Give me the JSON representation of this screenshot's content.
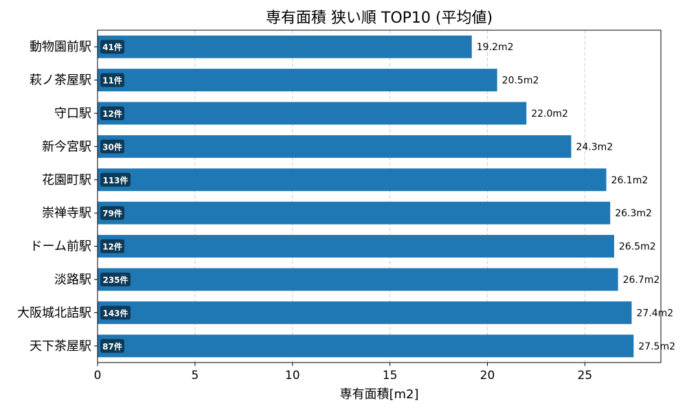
{
  "chart_data": {
    "type": "bar",
    "orientation": "horizontal",
    "title": "専有面積 狭い順 TOP10 (平均値)",
    "xlabel": "専有面積[m2]",
    "ylabel": "",
    "xlim": [
      0,
      28.9
    ],
    "xticks": [
      0,
      5,
      10,
      15,
      20,
      25
    ],
    "grid": "x-dashed",
    "categories": [
      "動物園前駅",
      "萩ノ茶屋駅",
      "守口駅",
      "新今宮駅",
      "花園町駅",
      "崇禅寺駅",
      "ドーム前駅",
      "淡路駅",
      "大阪城北詰駅",
      "天下茶屋駅"
    ],
    "values": [
      19.2,
      20.5,
      22.0,
      24.3,
      26.1,
      26.3,
      26.5,
      26.7,
      27.4,
      27.5
    ],
    "value_labels": [
      "19.2m2",
      "20.5m2",
      "22.0m2",
      "24.3m2",
      "26.1m2",
      "26.3m2",
      "26.5m2",
      "26.7m2",
      "27.4m2",
      "27.5m2"
    ],
    "count_labels": [
      "41件",
      "11件",
      "12件",
      "30件",
      "113件",
      "79件",
      "12件",
      "235件",
      "143件",
      "87件"
    ],
    "colors": {
      "bar": "#1f77b4",
      "badge": "#0d3a57",
      "badge_text": "#ffffff",
      "grid": "#cccccc"
    }
  }
}
